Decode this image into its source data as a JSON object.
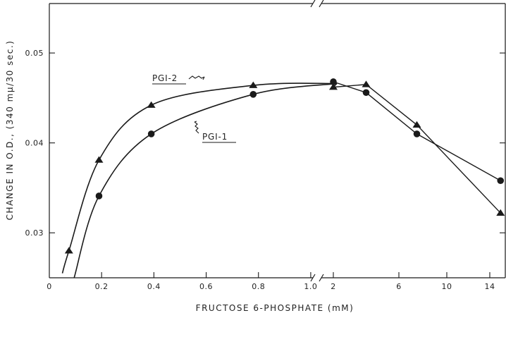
{
  "chart_data": {
    "type": "line",
    "xlabel": "FRUCTOSE  6-PHOSPHATE  (mM)",
    "ylabel": "CHANGE  IN  O.D.,  (340 mμ/30 sec.)",
    "ylim": [
      0.025,
      0.0555
    ],
    "y_ticks": [
      0.03,
      0.04,
      0.05
    ],
    "y_tick_labels": [
      "0.03",
      "0.04",
      "0.05"
    ],
    "x_axis_note": "broken axis: linear 0-1.1 mM on the left, 2-14 mM on the right",
    "x_left_range": [
      0,
      1.1
    ],
    "x_left_ticks": [
      0,
      0.2,
      0.4,
      0.6,
      0.8,
      1.0
    ],
    "x_left_tick_labels": [
      "0",
      "0.2",
      "0.4",
      "0.6",
      "0.8",
      "1.0"
    ],
    "x_right_ticks": [
      2,
      6,
      10,
      14
    ],
    "x_right_tick_labels": [
      "2",
      "6",
      "10",
      "14"
    ],
    "series": [
      {
        "name": "PGI-2",
        "marker": "triangle",
        "curve_points": [
          {
            "x": 0.05,
            "y": 0.0255
          },
          {
            "x": 0.075,
            "y": 0.028
          },
          {
            "x": 0.19,
            "y": 0.0381
          },
          {
            "x": 0.39,
            "y": 0.0442
          },
          {
            "x": 0.78,
            "y": 0.0464
          },
          {
            "x": 1.1,
            "y": 0.0466
          }
        ],
        "markers_left": [
          {
            "x": 0.075,
            "y": 0.028
          },
          {
            "x": 0.19,
            "y": 0.0381
          },
          {
            "x": 0.39,
            "y": 0.0442
          },
          {
            "x": 0.78,
            "y": 0.0464
          }
        ],
        "markers_right": [
          {
            "x": 2,
            "y": 0.0462
          },
          {
            "x": 4,
            "y": 0.0465
          },
          {
            "x": 7.5,
            "y": 0.042
          },
          {
            "x": 15,
            "y": 0.0322
          }
        ]
      },
      {
        "name": "PGI-1",
        "marker": "circle",
        "curve_points": [
          {
            "x": 0.095,
            "y": 0.025
          },
          {
            "x": 0.19,
            "y": 0.0341
          },
          {
            "x": 0.39,
            "y": 0.041
          },
          {
            "x": 0.78,
            "y": 0.0454
          },
          {
            "x": 1.1,
            "y": 0.0466
          }
        ],
        "markers_left": [
          {
            "x": 0.19,
            "y": 0.0341
          },
          {
            "x": 0.39,
            "y": 0.041
          },
          {
            "x": 0.78,
            "y": 0.0454
          }
        ],
        "markers_right": [
          {
            "x": 2,
            "y": 0.0468
          },
          {
            "x": 4,
            "y": 0.0456
          },
          {
            "x": 7.5,
            "y": 0.041
          },
          {
            "x": 15,
            "y": 0.0358
          }
        ]
      }
    ],
    "annotations": [
      {
        "text": "PGI-2",
        "series": "PGI-2"
      },
      {
        "text": "PGI-1",
        "series": "PGI-1"
      }
    ]
  }
}
